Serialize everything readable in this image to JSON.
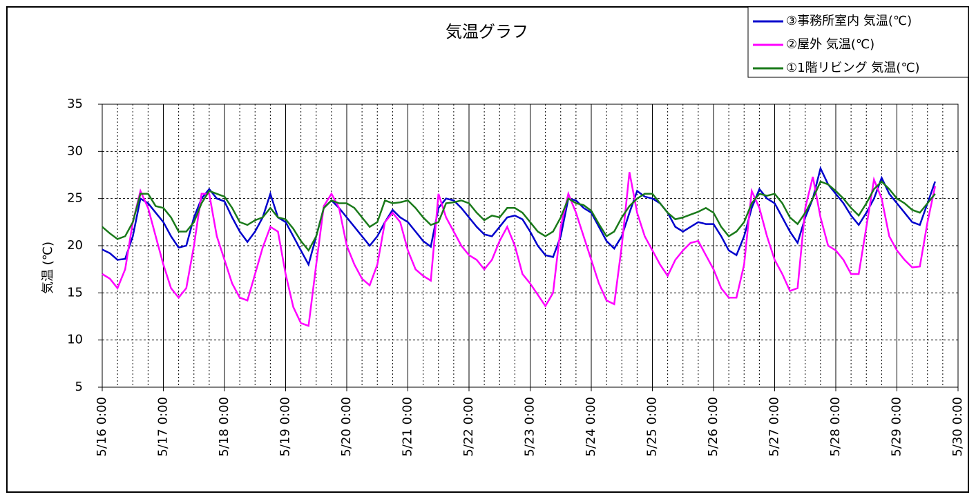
{
  "chart_data": {
    "type": "line",
    "title": "気温グラフ",
    "y_label": "気温 (℃)",
    "x": [
      "5/16 0:00",
      "5/16 3:00",
      "5/16 6:00",
      "5/16 9:00",
      "5/16 12:00",
      "5/16 15:00",
      "5/16 18:00",
      "5/16 21:00",
      "5/17 0:00",
      "5/17 3:00",
      "5/17 6:00",
      "5/17 9:00",
      "5/17 12:00",
      "5/17 15:00",
      "5/17 18:00",
      "5/17 21:00",
      "5/18 0:00",
      "5/18 3:00",
      "5/18 6:00",
      "5/18 9:00",
      "5/18 12:00",
      "5/18 15:00",
      "5/18 18:00",
      "5/18 21:00",
      "5/19 0:00",
      "5/19 3:00",
      "5/19 6:00",
      "5/19 9:00",
      "5/19 12:00",
      "5/19 15:00",
      "5/19 18:00",
      "5/19 21:00",
      "5/20 0:00",
      "5/20 3:00",
      "5/20 6:00",
      "5/20 9:00",
      "5/20 12:00",
      "5/20 15:00",
      "5/20 18:00",
      "5/20 21:00",
      "5/21 0:00",
      "5/21 3:00",
      "5/21 6:00",
      "5/21 9:00",
      "5/21 12:00",
      "5/21 15:00",
      "5/21 18:00",
      "5/21 21:00",
      "5/22 0:00",
      "5/22 3:00",
      "5/22 6:00",
      "5/22 9:00",
      "5/22 12:00",
      "5/22 15:00",
      "5/22 18:00",
      "5/22 21:00",
      "5/23 0:00",
      "5/23 3:00",
      "5/23 6:00",
      "5/23 9:00",
      "5/23 12:00",
      "5/23 15:00",
      "5/23 18:00",
      "5/23 21:00",
      "5/24 0:00",
      "5/24 3:00",
      "5/24 6:00",
      "5/24 9:00",
      "5/24 12:00",
      "5/24 15:00",
      "5/24 18:00",
      "5/24 21:00",
      "5/25 0:00",
      "5/25 3:00",
      "5/25 6:00",
      "5/25 9:00",
      "5/25 12:00",
      "5/25 15:00",
      "5/25 18:00",
      "5/25 21:00",
      "5/26 0:00",
      "5/26 3:00",
      "5/26 6:00",
      "5/26 9:00",
      "5/26 12:00",
      "5/26 15:00",
      "5/26 18:00",
      "5/26 21:00",
      "5/27 0:00",
      "5/27 3:00",
      "5/27 6:00",
      "5/27 9:00",
      "5/27 12:00",
      "5/27 15:00",
      "5/27 18:00",
      "5/27 21:00",
      "5/28 0:00",
      "5/28 3:00",
      "5/28 6:00",
      "5/28 9:00",
      "5/28 12:00",
      "5/28 15:00",
      "5/28 18:00",
      "5/28 21:00",
      "5/29 0:00",
      "5/29 3:00",
      "5/29 6:00",
      "5/29 9:00",
      "5/29 12:00",
      "5/29 15:00"
    ],
    "series": [
      {
        "name": "③事務所室内 気温(℃)",
        "color": "#0000cc",
        "values": [
          19.6,
          19.2,
          18.5,
          18.6,
          21,
          25,
          24.5,
          23.5,
          22.5,
          21,
          19.8,
          20,
          23,
          25,
          26,
          25,
          24.7,
          23,
          21.5,
          20.4,
          21.5,
          23,
          25.5,
          23,
          22.5,
          21,
          19.5,
          18,
          21,
          24,
          24.8,
          24,
          23,
          22,
          21,
          20,
          21,
          22.5,
          23.8,
          23,
          22.5,
          21.5,
          20.5,
          19.9,
          24,
          25,
          24.8,
          24,
          23,
          22,
          21.2,
          21,
          22,
          23,
          23.2,
          22.8,
          21.5,
          20,
          19,
          18.8,
          21,
          25,
          24.8,
          24,
          23.5,
          22,
          20.5,
          19.7,
          21,
          23.5,
          25.8,
          25.2,
          25,
          24.5,
          23.5,
          22,
          21.5,
          22,
          22.5,
          22.3,
          22.3,
          21,
          19.5,
          19,
          21,
          24,
          26,
          25,
          24.5,
          23,
          21.5,
          20.3,
          23,
          25,
          28.2,
          26.5,
          25.5,
          24.5,
          23.2,
          22.2,
          23.5,
          25,
          27.2,
          25.5,
          24.5,
          23.5,
          22.5,
          22.2,
          24.5,
          26.8
        ]
      },
      {
        "name": "②屋外 気温(℃)",
        "color": "#ff00ff",
        "values": [
          17,
          16.5,
          15.5,
          17.5,
          22.5,
          25.8,
          24,
          21,
          18,
          15.5,
          14.5,
          15.5,
          20,
          25.5,
          25.5,
          21,
          18.5,
          16,
          14.5,
          14.2,
          17,
          19.8,
          22,
          21.5,
          17,
          13.5,
          11.8,
          11.5,
          18,
          24.2,
          25.5,
          24,
          20,
          18,
          16.5,
          15.8,
          18,
          22.5,
          23.5,
          22.5,
          19.5,
          17.5,
          16.8,
          16.3,
          25.5,
          23,
          21.5,
          20,
          19,
          18.5,
          17.5,
          18.5,
          20.5,
          22,
          20,
          17,
          16,
          14.8,
          13.6,
          15,
          22,
          25.5,
          23.5,
          21,
          18.5,
          16,
          14.2,
          13.8,
          20,
          27.8,
          23.5,
          21,
          19.5,
          18,
          16.8,
          18.5,
          19.5,
          20.3,
          20.5,
          19,
          17.5,
          15.5,
          14.5,
          14.5,
          18,
          25.8,
          24,
          21,
          18.5,
          17,
          15.2,
          15.5,
          24,
          27.3,
          23,
          20,
          19.5,
          18.5,
          17,
          17,
          22,
          27,
          25,
          21,
          19.5,
          18.5,
          17.7,
          17.8,
          22.5,
          26.3
        ]
      },
      {
        "name": "①1階リビング 気温(℃)",
        "color": "#1a7a1a",
        "values": [
          22,
          21.3,
          20.7,
          21,
          22.5,
          25.5,
          25.5,
          24.2,
          24,
          23,
          21.5,
          21.5,
          22.5,
          24.5,
          25.8,
          25.5,
          25.2,
          24,
          22.5,
          22.2,
          22.7,
          23,
          24,
          23,
          22.8,
          21.8,
          20.5,
          19.5,
          21,
          24,
          24.8,
          24.5,
          24.5,
          24,
          23,
          22,
          22.5,
          24.8,
          24.5,
          24.6,
          24.8,
          24,
          23,
          22.2,
          22.5,
          24.5,
          24.6,
          24.8,
          24.5,
          23.5,
          22.7,
          23.2,
          23,
          24,
          24,
          23.5,
          22.5,
          21.5,
          21,
          21.5,
          23,
          25,
          24.5,
          24.3,
          23.7,
          22.3,
          21,
          21.5,
          23,
          24.2,
          25,
          25.5,
          25.5,
          24.5,
          23.5,
          22.8,
          23,
          23.3,
          23.6,
          24,
          23.5,
          22,
          21,
          21.5,
          22.5,
          24.5,
          25.5,
          25.3,
          25.5,
          24.5,
          23,
          22.3,
          23.5,
          25,
          26.8,
          26.5,
          25.8,
          25,
          24,
          23.2,
          24.5,
          26,
          26.8,
          26,
          25,
          24.5,
          23.8,
          23.5,
          24.5,
          25.5
        ]
      }
    ],
    "xlim": [
      "5/16 0:00",
      "5/30 0:00"
    ],
    "xticks": [
      "5/16 0:00",
      "5/17 0:00",
      "5/18 0:00",
      "5/19 0:00",
      "5/20 0:00",
      "5/21 0:00",
      "5/22 0:00",
      "5/23 0:00",
      "5/24 0:00",
      "5/25 0:00",
      "5/26 0:00",
      "5/27 0:00",
      "5/28 0:00",
      "5/29 0:00",
      "5/30 0:00"
    ],
    "ylim": [
      5,
      35
    ],
    "yticks": [
      5,
      10,
      15,
      20,
      25,
      30,
      35
    ],
    "grid": true,
    "legend": "top-right"
  }
}
